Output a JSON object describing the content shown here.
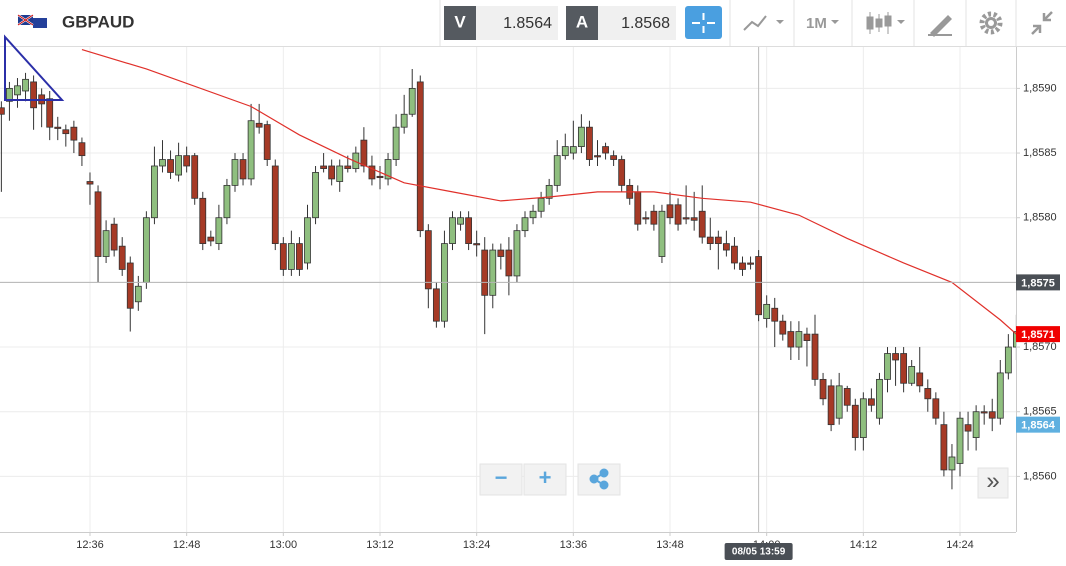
{
  "header": {
    "symbol": "GBPAUD",
    "sell_label": "V",
    "sell_price": "1.8564",
    "buy_label": "A",
    "buy_price": "1.8568",
    "timeframe": "1M"
  },
  "controls": {
    "zoom_out": "−",
    "zoom_in": "+",
    "scroll_end": "»"
  },
  "chart_data": {
    "type": "candlestick",
    "up_color": "#8fbf7f",
    "down_color": "#a63a26",
    "x": [
      745,
      746,
      747,
      748,
      749,
      750,
      751,
      752,
      753,
      754,
      755,
      756,
      757,
      758,
      759,
      760,
      761,
      762,
      763,
      764,
      765,
      766,
      767,
      768,
      769,
      770,
      771,
      772,
      773,
      774,
      775,
      776,
      777,
      778,
      779,
      780,
      781,
      782,
      783,
      784,
      785,
      786,
      787,
      788,
      789,
      790,
      791,
      792,
      793,
      794,
      795,
      796,
      797,
      798,
      799,
      800,
      801,
      802,
      803,
      804,
      805,
      806,
      807,
      808,
      809,
      810,
      811,
      812,
      813,
      814,
      815,
      816,
      817,
      818,
      819,
      820,
      821,
      822,
      823,
      824,
      825,
      826,
      827,
      828,
      829,
      830,
      831,
      832,
      833,
      834,
      835,
      836,
      837,
      838,
      839,
      840,
      841,
      842,
      843,
      844,
      845,
      846,
      847,
      848,
      849,
      850,
      851,
      852,
      853,
      854,
      855,
      856,
      857,
      858,
      859,
      860,
      861,
      862,
      863,
      864,
      865,
      866,
      867,
      868,
      869,
      870,
      871
    ],
    "open": [
      1.85885,
      1.8589,
      1.85895,
      1.85898,
      1.85905,
      1.85895,
      1.85892,
      1.8587,
      1.85868,
      1.8587,
      1.85858,
      1.85828,
      1.8582,
      1.8577,
      1.85795,
      1.85778,
      1.85765,
      1.85735,
      1.8575,
      1.858,
      1.8584,
      1.85845,
      1.85833,
      1.85848,
      1.85848,
      1.85815,
      1.85785,
      1.8578,
      1.858,
      1.85825,
      1.85845,
      1.8583,
      1.85873,
      1.85872,
      1.8584,
      1.8578,
      1.8576,
      1.8578,
      1.85765,
      1.858,
      1.8584,
      1.8584,
      1.85828,
      1.8584,
      1.85838,
      1.8586,
      1.8584,
      1.85832,
      1.8583,
      1.85845,
      1.8587,
      1.8588,
      1.85905,
      1.8579,
      1.85745,
      1.8572,
      1.8578,
      1.85795,
      1.858,
      1.8578,
      1.85775,
      1.8574,
      1.85775,
      1.85775,
      1.85755,
      1.8579,
      1.858,
      1.85805,
      1.85815,
      1.85825,
      1.85848,
      1.8585,
      1.85855,
      1.8587,
      1.85848,
      1.85855,
      1.85848,
      1.85845,
      1.85825,
      1.8582,
      1.858,
      1.85805,
      1.8577,
      1.8581,
      1.8581,
      1.858,
      1.858,
      1.85805,
      1.85785,
      1.85785,
      1.8578,
      1.85778,
      1.85765,
      1.85765,
      1.8577,
      1.85722,
      1.8573,
      1.8572,
      1.85712,
      1.857,
      1.8571,
      1.8571,
      1.85675,
      1.8567,
      1.85645,
      1.85668,
      1.85655,
      1.8563,
      1.8566,
      1.85645,
      1.85675,
      1.85695,
      1.85695,
      1.85672,
      1.8568,
      1.85668,
      1.8566,
      1.8564,
      1.85605,
      1.8561,
      1.8564,
      1.8563,
      1.8565,
      1.8565,
      1.85645,
      1.8568,
      1.857
    ],
    "high": [
      1.8589,
      1.85905,
      1.85908,
      1.85912,
      1.8591,
      1.859,
      1.85898,
      1.85878,
      1.85872,
      1.85875,
      1.85862,
      1.85835,
      1.85825,
      1.85798,
      1.858,
      1.85785,
      1.8577,
      1.85755,
      1.85805,
      1.85855,
      1.8586,
      1.85852,
      1.85858,
      1.85855,
      1.8585,
      1.8582,
      1.8579,
      1.8581,
      1.8583,
      1.8585,
      1.8585,
      1.85888,
      1.85888,
      1.85875,
      1.85845,
      1.85785,
      1.8579,
      1.85785,
      1.8581,
      1.8584,
      1.8585,
      1.85845,
      1.85845,
      1.85848,
      1.85855,
      1.8587,
      1.85848,
      1.8584,
      1.8585,
      1.8588,
      1.85895,
      1.85915,
      1.8591,
      1.85795,
      1.8575,
      1.8579,
      1.85805,
      1.85805,
      1.85805,
      1.8579,
      1.85785,
      1.8578,
      1.8578,
      1.85785,
      1.85795,
      1.85805,
      1.8581,
      1.8582,
      1.8583,
      1.8586,
      1.85865,
      1.85875,
      1.8588,
      1.85875,
      1.8586,
      1.85858,
      1.85852,
      1.85848,
      1.8583,
      1.85825,
      1.85805,
      1.8581,
      1.8581,
      1.8582,
      1.85815,
      1.85825,
      1.8582,
      1.85825,
      1.858,
      1.8579,
      1.8579,
      1.85785,
      1.8577,
      1.8577,
      1.85775,
      1.8574,
      1.85738,
      1.85725,
      1.8572,
      1.8572,
      1.85715,
      1.85725,
      1.8568,
      1.85675,
      1.8568,
      1.8567,
      1.8566,
      1.85665,
      1.85668,
      1.8568,
      1.857,
      1.857,
      1.857,
      1.8569,
      1.857,
      1.85675,
      1.85665,
      1.8565,
      1.85625,
      1.8565,
      1.8565,
      1.85655,
      1.85655,
      1.8566,
      1.8569,
      1.8571,
      1.85725
    ],
    "low": [
      1.8582,
      1.85875,
      1.85885,
      1.8589,
      1.85868,
      1.8587,
      1.8586,
      1.8586,
      1.85855,
      1.8585,
      1.8584,
      1.8581,
      1.8575,
      1.85765,
      1.8577,
      1.85755,
      1.85712,
      1.85728,
      1.85745,
      1.85795,
      1.85835,
      1.8583,
      1.85828,
      1.85835,
      1.8581,
      1.85775,
      1.85778,
      1.85775,
      1.85795,
      1.8582,
      1.85825,
      1.85825,
      1.85865,
      1.8584,
      1.85775,
      1.85755,
      1.85755,
      1.85755,
      1.8576,
      1.85795,
      1.85835,
      1.85825,
      1.8582,
      1.85835,
      1.85835,
      1.85835,
      1.85825,
      1.85822,
      1.85825,
      1.8584,
      1.85865,
      1.85878,
      1.85785,
      1.8573,
      1.85715,
      1.85715,
      1.85775,
      1.8579,
      1.85775,
      1.8577,
      1.8571,
      1.8573,
      1.8576,
      1.8574,
      1.8575,
      1.85785,
      1.85795,
      1.858,
      1.8581,
      1.8582,
      1.85845,
      1.85845,
      1.8585,
      1.8584,
      1.8584,
      1.85845,
      1.8584,
      1.8582,
      1.8581,
      1.8579,
      1.85795,
      1.8579,
      1.85765,
      1.85795,
      1.8579,
      1.85795,
      1.8579,
      1.8578,
      1.85775,
      1.8576,
      1.8577,
      1.8576,
      1.85755,
      1.8576,
      1.8572,
      1.85715,
      1.857,
      1.85705,
      1.8569,
      1.8569,
      1.85685,
      1.8567,
      1.85655,
      1.85635,
      1.8564,
      1.8565,
      1.8562,
      1.8562,
      1.8565,
      1.8564,
      1.85665,
      1.8567,
      1.85665,
      1.8567,
      1.85665,
      1.8565,
      1.8564,
      1.856,
      1.8559,
      1.856,
      1.8562,
      1.8562,
      1.8564,
      1.85635,
      1.8564,
      1.85675,
      1.8569
    ],
    "close": [
      1.8588,
      1.859,
      1.85902,
      1.85907,
      1.85885,
      1.85888,
      1.8587,
      1.85869,
      1.85865,
      1.8586,
      1.85848,
      1.85826,
      1.8577,
      1.8579,
      1.85775,
      1.8576,
      1.8573,
      1.85747,
      1.858,
      1.8584,
      1.85845,
      1.85835,
      1.85848,
      1.8584,
      1.85815,
      1.8578,
      1.85782,
      1.858,
      1.85825,
      1.85845,
      1.8583,
      1.85875,
      1.8587,
      1.85845,
      1.8578,
      1.8576,
      1.8578,
      1.8576,
      1.858,
      1.85835,
      1.85838,
      1.8583,
      1.8584,
      1.85838,
      1.8585,
      1.8584,
      1.8583,
      1.85831,
      1.85845,
      1.8587,
      1.8588,
      1.859,
      1.8579,
      1.85745,
      1.8572,
      1.8578,
      1.858,
      1.858,
      1.8578,
      1.85779,
      1.8574,
      1.85775,
      1.8577,
      1.85755,
      1.8579,
      1.858,
      1.85805,
      1.85815,
      1.85825,
      1.85848,
      1.85855,
      1.85855,
      1.8587,
      1.85845,
      1.85847,
      1.8585,
      1.85845,
      1.85825,
      1.85815,
      1.85795,
      1.85799,
      1.85795,
      1.85805,
      1.858,
      1.85795,
      1.85799,
      1.85798,
      1.85785,
      1.8578,
      1.8578,
      1.85775,
      1.85765,
      1.8576,
      1.85764,
      1.85725,
      1.85733,
      1.8572,
      1.8571,
      1.857,
      1.85712,
      1.85705,
      1.85675,
      1.8566,
      1.8564,
      1.8567,
      1.85655,
      1.8563,
      1.8566,
      1.85655,
      1.85675,
      1.85695,
      1.8569,
      1.85672,
      1.85685,
      1.8567,
      1.8566,
      1.85645,
      1.85605,
      1.85615,
      1.85645,
      1.85635,
      1.8565,
      1.85649,
      1.85645,
      1.8568,
      1.857,
      1.85712
    ],
    "ma": {
      "color": "#e0302a",
      "x": [
        755,
        763,
        776,
        782,
        788,
        795,
        801,
        807,
        813,
        819,
        826,
        832,
        838,
        844,
        850,
        857,
        863,
        869,
        871
      ],
      "values": [
        1.8593,
        1.85915,
        1.85886,
        1.85864,
        1.85846,
        1.85827,
        1.8582,
        1.85813,
        1.85816,
        1.8582,
        1.8582,
        1.85815,
        1.85812,
        1.85802,
        1.85784,
        1.85765,
        1.8575,
        1.85721,
        1.8571
      ]
    },
    "xlim": [
      744.83,
      870.95
    ],
    "ylim": [
      1.85557,
      1.85932
    ],
    "xticks": [
      {
        "value": 756,
        "label": "12:36"
      },
      {
        "value": 768,
        "label": "12:48"
      },
      {
        "value": 780,
        "label": "13:00"
      },
      {
        "value": 792,
        "label": "13:12"
      },
      {
        "value": 804,
        "label": "13:24"
      },
      {
        "value": 816,
        "label": "13:36"
      },
      {
        "value": 828,
        "label": "13:48"
      },
      {
        "value": 840,
        "label": "14:00"
      },
      {
        "value": 852,
        "label": "14:12"
      },
      {
        "value": 864,
        "label": "14:24"
      }
    ],
    "yticks": [
      {
        "value": 1.856,
        "label": "1,8560"
      },
      {
        "value": 1.8565,
        "label": "1,8565"
      },
      {
        "value": 1.857,
        "label": "1,8570"
      },
      {
        "value": 1.8575,
        "label": "1,8575"
      },
      {
        "value": 1.858,
        "label": "1,8580"
      },
      {
        "value": 1.8585,
        "label": "1,8585"
      },
      {
        "value": 1.859,
        "label": "1,8590"
      }
    ],
    "grid": true,
    "price_lines": [
      {
        "value": 1.8575,
        "label": "1,8575",
        "color": "#4a4f55"
      },
      {
        "value": 1.8571,
        "label": "1,8571",
        "color": "#f00000"
      },
      {
        "value": 1.8564,
        "label": "1,8564",
        "color": "#5fb0e0"
      }
    ],
    "crosshair": {
      "value": 839,
      "label": "08/05 13:59"
    }
  }
}
